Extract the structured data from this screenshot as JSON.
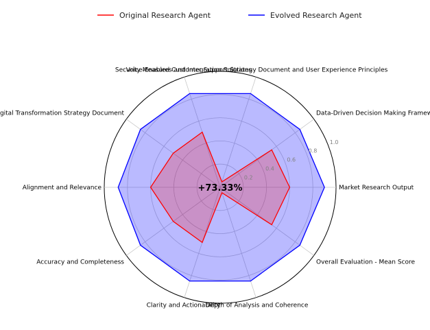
{
  "chart_data": {
    "type": "radar",
    "categories": [
      "Market Research Output",
      "Data-Driven Decision Making Framework and Strategy",
      "Voice-Enabled Customer Support Strategy Document and User Experience Principles",
      "Security Measures and Integration Solutions",
      "Comprehensive Digital Transformation Strategy Document",
      "Alignment and Relevance",
      "Accuracy and Completeness",
      "Clarity and Actionability",
      "Depth of Analysis and Coherence",
      "Overall Evaluation - Mean Score"
    ],
    "series": [
      {
        "name": "Original Research Agent",
        "color": "#ff0000",
        "values": [
          0.6,
          0.55,
          0.05,
          0.5,
          0.5,
          0.6,
          0.5,
          0.5,
          0.05,
          0.55
        ]
      },
      {
        "name": "Evolved Research Agent",
        "color": "#0000ff",
        "fill": "#0000ff",
        "values": [
          0.9,
          0.85,
          0.85,
          0.85,
          0.85,
          0.88,
          0.85,
          0.85,
          0.85,
          0.85
        ]
      }
    ],
    "rlim": [
      0,
      1.0
    ],
    "rticks": [
      "0.2",
      "0.4",
      "0.6",
      "0.8",
      "1.0"
    ],
    "center_annotation": "+73.33%",
    "legend_placement": "top-center",
    "grid": true
  }
}
